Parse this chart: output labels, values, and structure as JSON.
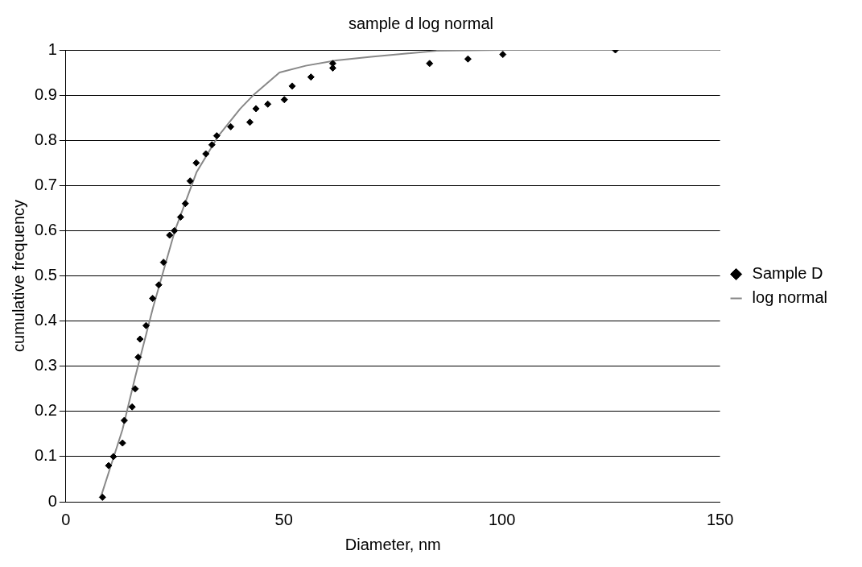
{
  "chart_data": {
    "type": "scatter",
    "title": "sample d log normal",
    "xlabel": "Diameter, nm",
    "ylabel": "cumulative frequency",
    "xlim": [
      0,
      150
    ],
    "xticks": [
      0,
      50,
      100,
      150
    ],
    "ylim": [
      0,
      1
    ],
    "yticks": [
      0,
      0.1,
      0.2,
      0.3,
      0.4,
      0.5,
      0.6,
      0.7,
      0.8,
      0.9,
      1
    ],
    "grid": "y",
    "legend": "right",
    "marker": "diamond",
    "series": [
      {
        "name": "Sample D",
        "color": "#000000",
        "x": [
          8.4,
          9.8,
          10.9,
          13,
          13.4,
          15.2,
          15.9,
          16.6,
          17,
          18.4,
          19.9,
          21.3,
          22.4,
          23.8,
          24.9,
          26.3,
          27.4,
          28.5,
          29.9,
          32.1,
          33.5,
          34.6,
          37.8,
          42.2,
          43.6,
          46.3,
          50.1,
          51.9,
          56.2,
          61.2,
          61.2,
          83.4,
          92.2,
          100.2,
          126
        ],
        "values": [
          0.01,
          0.08,
          0.1,
          0.13,
          0.18,
          0.21,
          0.25,
          0.32,
          0.36,
          0.39,
          0.45,
          0.48,
          0.53,
          0.59,
          0.6,
          0.63,
          0.66,
          0.71,
          0.75,
          0.77,
          0.79,
          0.81,
          0.83,
          0.84,
          0.87,
          0.88,
          0.89,
          0.92,
          0.94,
          0.96,
          0.97,
          0.97,
          0.98,
          0.99,
          1
        ]
      },
      {
        "name": "log normal",
        "type": "line",
        "color": "#888888",
        "marker": "none",
        "x": [
          8,
          10,
          13,
          16,
          20,
          25,
          30,
          35,
          40,
          43,
          49,
          55,
          62,
          70,
          85,
          100,
          125,
          150
        ],
        "values": [
          0.01,
          0.07,
          0.16,
          0.28,
          0.43,
          0.6,
          0.73,
          0.81,
          0.87,
          0.9,
          0.95,
          0.965,
          0.977,
          0.985,
          0.998,
          1,
          1,
          1
        ]
      }
    ]
  }
}
